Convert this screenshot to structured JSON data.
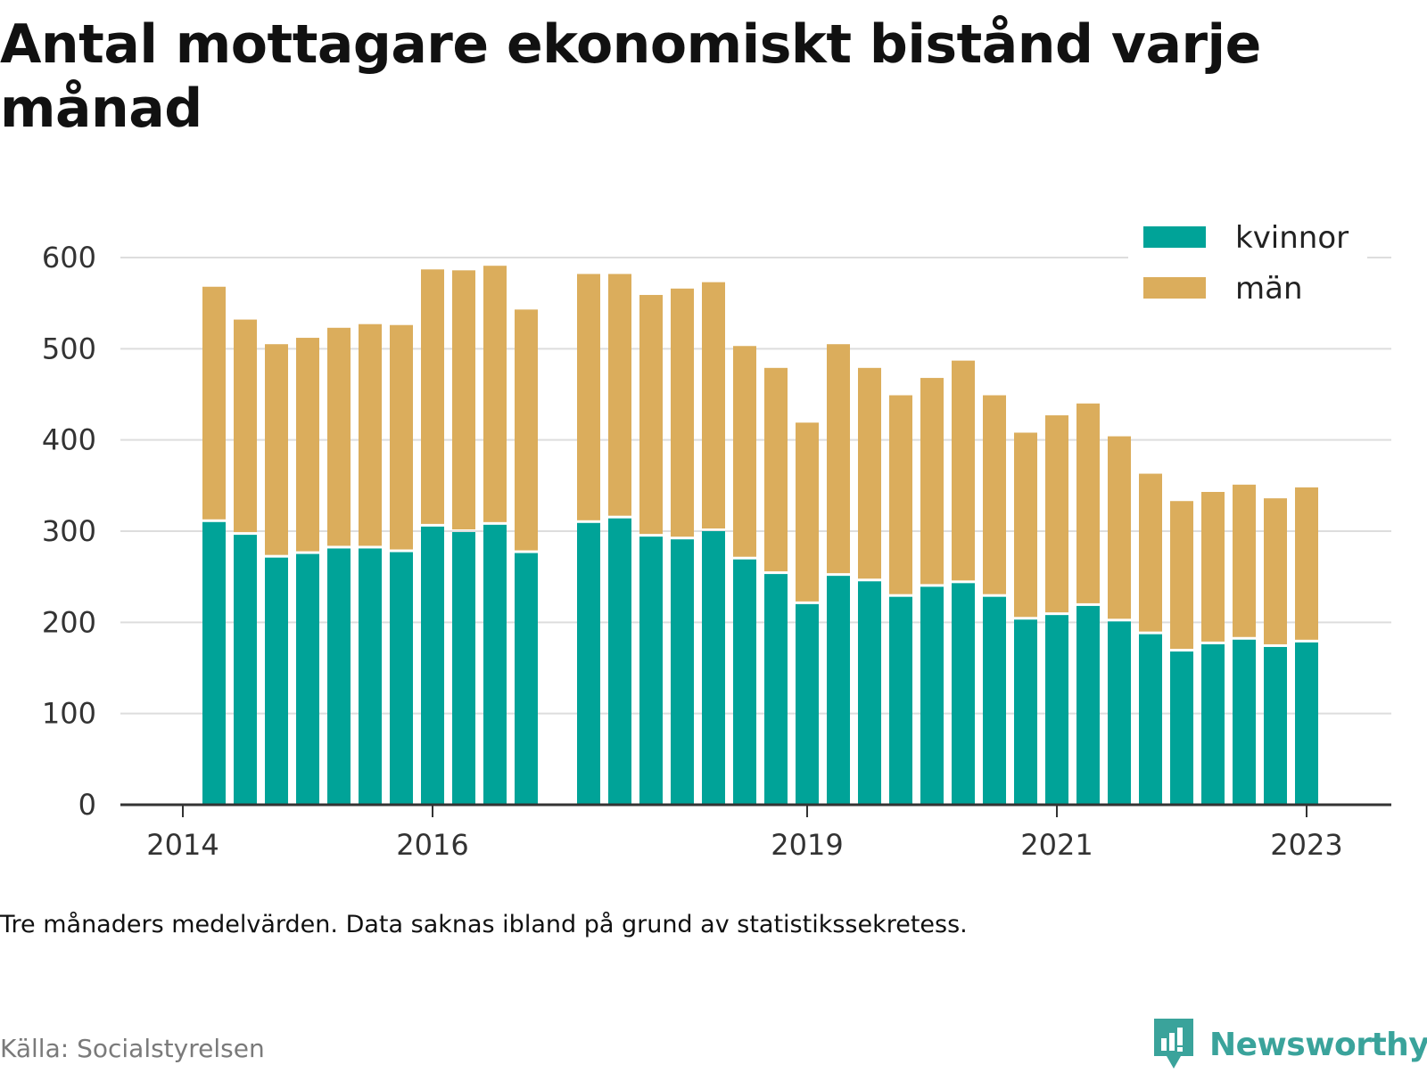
{
  "title": "Antal mottagare ekonomiskt bistånd varje månad",
  "note": "Tre månaders medelvärden. Data saknas ibland på grund av statistikssekretess.",
  "source": "Källa: Socialstyrelsen",
  "brand": "Newsworthy",
  "colors": {
    "kvinnor": "#00a398",
    "man": "#dbad5c",
    "grid": "#dddddd",
    "axis": "#333333"
  },
  "chart_data": {
    "type": "bar",
    "stacked": true,
    "grid": true,
    "legend_position": "top-right",
    "ylim": [
      0,
      600
    ],
    "yticks": [
      0,
      100,
      200,
      300,
      400,
      500,
      600
    ],
    "xticks": [
      {
        "label": "2014",
        "period": 0
      },
      {
        "label": "2016",
        "period": 8
      },
      {
        "label": "2019",
        "period": 20
      },
      {
        "label": "2021",
        "period": 28
      },
      {
        "label": "2023",
        "period": 36
      }
    ],
    "periods": [
      {
        "period": 1,
        "kvinnor": 310,
        "total": 568
      },
      {
        "period": 2,
        "kvinnor": 296,
        "total": 532
      },
      {
        "period": 3,
        "kvinnor": 271,
        "total": 505
      },
      {
        "period": 4,
        "kvinnor": 275,
        "total": 512
      },
      {
        "period": 5,
        "kvinnor": 281,
        "total": 523
      },
      {
        "period": 6,
        "kvinnor": 281,
        "total": 527
      },
      {
        "period": 7,
        "kvinnor": 277,
        "total": 526
      },
      {
        "period": 8,
        "kvinnor": 305,
        "total": 587
      },
      {
        "period": 9,
        "kvinnor": 299,
        "total": 586
      },
      {
        "period": 10,
        "kvinnor": 307,
        "total": 591
      },
      {
        "period": 11,
        "kvinnor": 276,
        "total": 543
      },
      {
        "period": 13,
        "kvinnor": 309,
        "total": 582
      },
      {
        "period": 14,
        "kvinnor": 314,
        "total": 582
      },
      {
        "period": 15,
        "kvinnor": 294,
        "total": 559
      },
      {
        "period": 16,
        "kvinnor": 291,
        "total": 566
      },
      {
        "period": 17,
        "kvinnor": 300,
        "total": 573
      },
      {
        "period": 18,
        "kvinnor": 269,
        "total": 503
      },
      {
        "period": 19,
        "kvinnor": 253,
        "total": 479
      },
      {
        "period": 20,
        "kvinnor": 220,
        "total": 419
      },
      {
        "period": 21,
        "kvinnor": 251,
        "total": 505
      },
      {
        "period": 22,
        "kvinnor": 245,
        "total": 479
      },
      {
        "period": 23,
        "kvinnor": 228,
        "total": 449
      },
      {
        "period": 24,
        "kvinnor": 239,
        "total": 468
      },
      {
        "period": 25,
        "kvinnor": 243,
        "total": 487
      },
      {
        "period": 26,
        "kvinnor": 228,
        "total": 449
      },
      {
        "period": 27,
        "kvinnor": 203,
        "total": 408
      },
      {
        "period": 28,
        "kvinnor": 208,
        "total": 427
      },
      {
        "period": 29,
        "kvinnor": 218,
        "total": 440
      },
      {
        "period": 30,
        "kvinnor": 201,
        "total": 404
      },
      {
        "period": 31,
        "kvinnor": 187,
        "total": 363
      },
      {
        "period": 32,
        "kvinnor": 168,
        "total": 333
      },
      {
        "period": 33,
        "kvinnor": 176,
        "total": 343
      },
      {
        "period": 34,
        "kvinnor": 181,
        "total": 351
      },
      {
        "period": 35,
        "kvinnor": 173,
        "total": 336
      },
      {
        "period": 36,
        "kvinnor": 178,
        "total": 348
      }
    ],
    "series": [
      {
        "name": "kvinnor",
        "key": "kvinnor"
      },
      {
        "name": "män",
        "key": "man"
      }
    ]
  }
}
